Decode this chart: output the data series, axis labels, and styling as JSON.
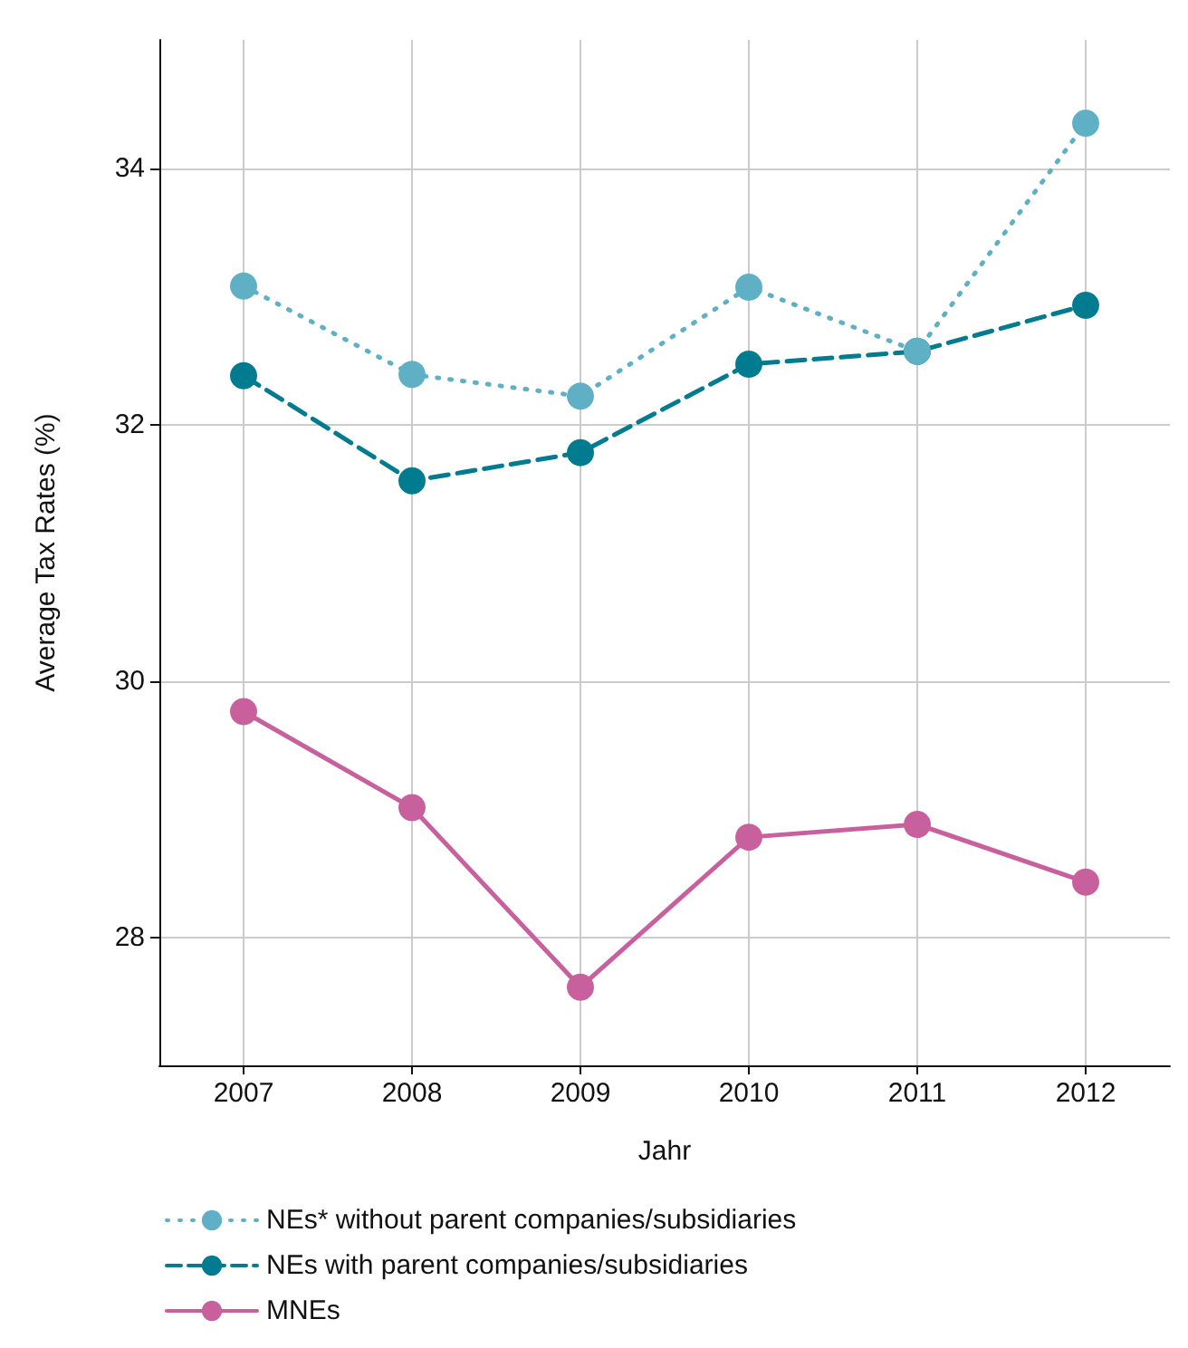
{
  "chart_data": {
    "type": "line",
    "xlabel": "Jahr",
    "ylabel": "Average Tax Rates (%)",
    "categories": [
      "2007",
      "2008",
      "2009",
      "2010",
      "2011",
      "2012"
    ],
    "series": [
      {
        "name": "NEs* without parent companies/subsidiaries",
        "color": "#5fb0c4",
        "line_style": "dotted",
        "values": [
          33.08,
          32.39,
          32.22,
          33.07,
          32.57,
          34.35
        ]
      },
      {
        "name": "NEs with parent companies/subsidiaries",
        "color": "#007b8f",
        "line_style": "dashed",
        "values": [
          32.38,
          31.56,
          31.78,
          32.47,
          32.57,
          32.93
        ]
      },
      {
        "name": "MNEs",
        "color": "#c8609e",
        "line_style": "solid",
        "values": [
          29.76,
          29.01,
          27.61,
          28.78,
          28.88,
          28.43
        ]
      }
    ],
    "ylim": [
      27,
      35
    ],
    "yticks": [
      28,
      30,
      32,
      34
    ],
    "grid": true,
    "legend": "bottom",
    "marker": "circle"
  }
}
